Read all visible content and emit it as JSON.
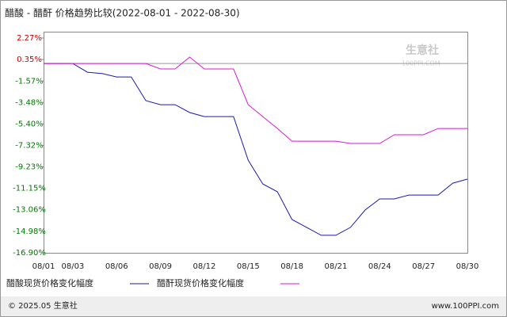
{
  "chart_data": {
    "type": "line",
    "title": "醋酸 - 醋酐 价格趋势比较(2022-08-01 - 2022-08-30)",
    "categories": [
      "08/01",
      null,
      "08/03",
      null,
      null,
      "08/06",
      null,
      null,
      "08/09",
      null,
      null,
      "08/12",
      null,
      null,
      "08/15",
      null,
      null,
      "08/18",
      null,
      null,
      "08/21",
      null,
      null,
      "08/24",
      null,
      null,
      "08/27",
      null,
      null,
      "08/30"
    ],
    "series": [
      {
        "name": "醋酸现货价格变化幅度",
        "color": "#1a1ab0",
        "values": [
          0,
          0,
          0,
          -0.78,
          -0.9,
          -1.2,
          -1.2,
          -3.32,
          -3.68,
          -3.68,
          -4.38,
          -4.74,
          -4.74,
          -4.74,
          -8.63,
          -10.75,
          -11.45,
          -13.93,
          -14.63,
          -15.34,
          -15.34,
          -14.63,
          -13.08,
          -12.09,
          -12.09,
          -11.74,
          -11.74,
          -11.74,
          -10.68,
          -10.32
        ]
      },
      {
        "name": "醋酐现货价格变化幅度",
        "color": "#d41ad4",
        "values": [
          0,
          0,
          0,
          0,
          0,
          0,
          0,
          0,
          -0.49,
          -0.49,
          0.57,
          -0.49,
          -0.49,
          -0.49,
          -3.68,
          -4.74,
          -5.8,
          -6.93,
          -6.93,
          -6.93,
          -6.93,
          -7.14,
          -7.14,
          -7.14,
          -6.36,
          -6.36,
          -6.36,
          -5.8,
          -5.8,
          -5.8
        ]
      }
    ],
    "ylim": [
      -16.9,
      2.27
    ],
    "yticks": [
      {
        "value": 2.27,
        "label": "2.27%"
      },
      {
        "value": 0.35,
        "label": "0.35%"
      },
      {
        "value": -1.57,
        "label": "-1.57%"
      },
      {
        "value": -3.48,
        "label": "-3.48%"
      },
      {
        "value": -5.4,
        "label": "-5.40%"
      },
      {
        "value": -7.32,
        "label": "-7.32%"
      },
      {
        "value": -9.23,
        "label": "-9.23%"
      },
      {
        "value": -11.15,
        "label": "-11.15%"
      },
      {
        "value": -13.06,
        "label": "-13.06%"
      },
      {
        "value": -14.98,
        "label": "-14.98%"
      },
      {
        "value": -16.9,
        "label": "-16.90%"
      }
    ],
    "watermark": [
      "生意社",
      "100PPI.COM"
    ],
    "footer": {
      "left": "© 2025.05 生意社",
      "right": "www.100PPI.com"
    }
  }
}
